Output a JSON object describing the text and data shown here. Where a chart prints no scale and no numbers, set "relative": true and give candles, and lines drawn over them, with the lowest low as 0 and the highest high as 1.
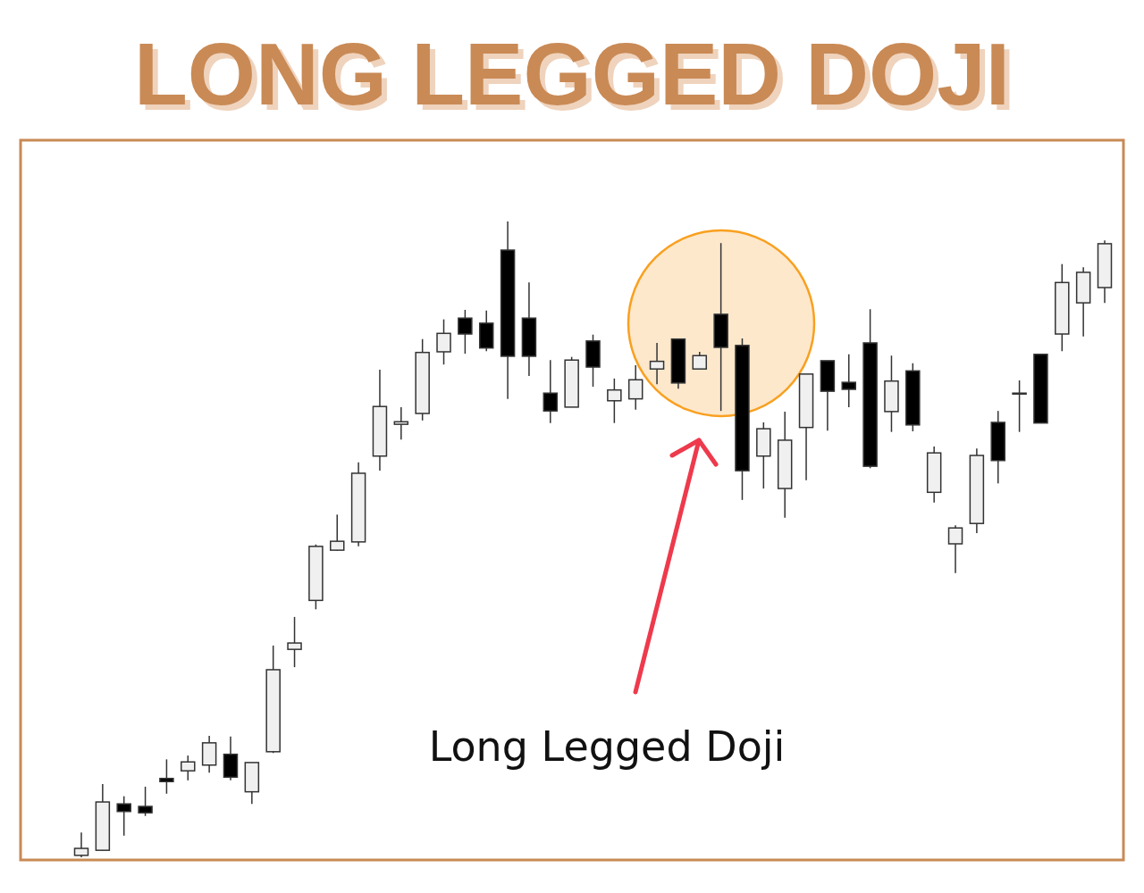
{
  "chart_data": {
    "type": "candlestick",
    "title": "LONG LEGGED DOJI",
    "relative": true,
    "annotations": [
      "Long Legged Doji"
    ],
    "categories": [
      null,
      null,
      null,
      null,
      null,
      null,
      null,
      null,
      null,
      null,
      null,
      null,
      null,
      null,
      null,
      null,
      null,
      null,
      null,
      null,
      null,
      null,
      null,
      null,
      null,
      null,
      null,
      null,
      null,
      null,
      null,
      null,
      null,
      null,
      null,
      null,
      null,
      null,
      null,
      null,
      null,
      null,
      null,
      null,
      null,
      null,
      null,
      null,
      null
    ],
    "ohlc": [
      [
        0.003,
        0.039,
        0,
        0.014
      ],
      [
        0.011,
        0.115,
        0.011,
        0.087
      ],
      [
        0.084,
        0.096,
        0.034,
        0.072
      ],
      [
        0.08,
        0.111,
        0.065,
        0.07
      ],
      [
        0.124,
        0.154,
        0.1,
        0.119
      ],
      [
        0.136,
        0.16,
        0.121,
        0.15
      ],
      [
        0.145,
        0.191,
        0.133,
        0.18
      ],
      [
        0.162,
        0.19,
        0.121,
        0.126
      ],
      [
        0.103,
        0.149,
        0.084,
        0.149
      ],
      [
        0.166,
        0.333,
        0.164,
        0.295
      ],
      [
        0.327,
        0.378,
        0.299,
        0.337
      ],
      [
        0.404,
        0.492,
        0.39,
        0.489
      ],
      [
        0.483,
        0.539,
        0.482,
        0.497
      ],
      [
        0.496,
        0.621,
        0.489,
        0.604
      ],
      [
        0.631,
        0.767,
        0.608,
        0.709
      ],
      [
        0.681,
        0.708,
        0.657,
        0.685
      ],
      [
        0.698,
        0.815,
        0.687,
        0.794
      ],
      [
        0.795,
        0.846,
        0.775,
        0.824
      ],
      [
        0.848,
        0.861,
        0.792,
        0.823
      ],
      [
        0.84,
        0.86,
        0.796,
        0.801
      ],
      [
        0.955,
        1,
        0.721,
        0.788
      ],
      [
        0.848,
        0.904,
        0.757,
        0.788
      ],
      [
        0.73,
        0.782,
        0.683,
        0.702
      ],
      [
        0.708,
        0.787,
        0.708,
        0.782
      ],
      [
        0.812,
        0.822,
        0.74,
        0.771
      ],
      [
        0.718,
        0.753,
        0.683,
        0.735
      ],
      [
        0.721,
        0.774,
        0.704,
        0.751
      ],
      [
        0.768,
        0.809,
        0.744,
        0.78
      ],
      [
        0.815,
        0.816,
        0.737,
        0.746
      ],
      [
        0.768,
        0.795,
        0.768,
        0.789
      ],
      [
        0.854,
        0.966,
        0.702,
        0.802
      ],
      [
        0.805,
        0.816,
        0.562,
        0.608
      ],
      [
        0.631,
        0.684,
        0.58,
        0.674
      ],
      [
        0.58,
        0.701,
        0.534,
        0.656
      ],
      [
        0.676,
        0.76,
        0.593,
        0.76
      ],
      [
        0.781,
        0.781,
        0.671,
        0.733
      ],
      [
        0.747,
        0.791,
        0.708,
        0.736
      ],
      [
        0.809,
        0.862,
        0.612,
        0.615
      ],
      [
        0.701,
        0.789,
        0.669,
        0.749
      ],
      [
        0.765,
        0.777,
        0.67,
        0.68
      ],
      [
        0.574,
        0.646,
        0.558,
        0.636
      ],
      [
        0.493,
        0.522,
        0.447,
        0.518
      ],
      [
        0.525,
        0.643,
        0.51,
        0.632
      ],
      [
        0.684,
        0.702,
        0.588,
        0.624
      ],
      [
        0.73,
        0.75,
        0.669,
        0.73
      ],
      [
        0.791,
        0.791,
        0.683,
        0.683
      ],
      [
        0.823,
        0.933,
        0.796,
        0.904
      ],
      [
        0.872,
        0.928,
        0.819,
        0.92
      ],
      [
        0.896,
        0.97,
        0.872,
        0.965
      ]
    ],
    "colors": [
      "#f0f0f0",
      "#f0f0f0",
      "#000000",
      "#000000",
      "#000000",
      "#f0f0f0",
      "#f0f0f0",
      "#000000",
      "#f0f0f0",
      "#f0f0f0",
      "#f0f0f0",
      "#f0f0f0",
      "#f0f0f0",
      "#f0f0f0",
      "#f0f0f0",
      "#f0f0f0",
      "#f0f0f0",
      "#f0f0f0",
      "#000000",
      "#000000",
      "#000000",
      "#000000",
      "#000000",
      "#f0f0f0",
      "#000000",
      "#f0f0f0",
      "#f0f0f0",
      "#f0f0f0",
      "#000000",
      "#f0f0f0",
      "#000000",
      "#000000",
      "#f0f0f0",
      "#f0f0f0",
      "#f0f0f0",
      "#000000",
      "#000000",
      "#000000",
      "#f0f0f0",
      "#000000",
      "#f0f0f0",
      "#f0f0f0",
      "#f0f0f0",
      "#000000",
      "#f0f0f0",
      "#000000",
      "#f0f0f0",
      "#f0f0f0",
      "#f0f0f0"
    ]
  }
}
